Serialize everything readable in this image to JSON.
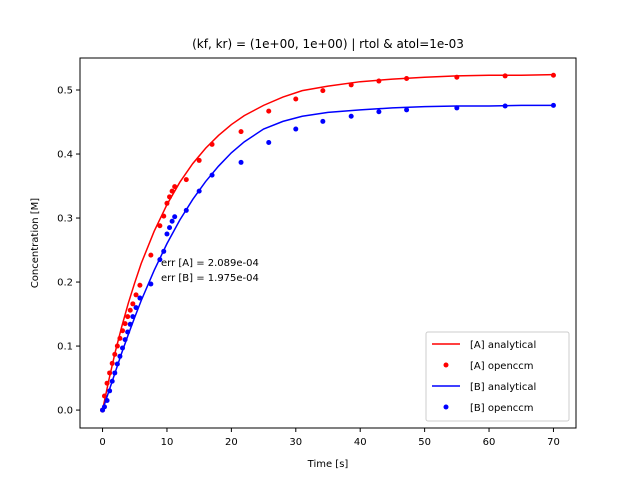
{
  "chart_data": {
    "type": "line",
    "title": "(kf, kr) = (1e+00, 1e+00) | rtol & atol=1e-03",
    "xlabel": "Time [s]",
    "ylabel": "Concentration [M]",
    "xlim": [
      -3.5,
      73.5
    ],
    "ylim": [
      -0.028,
      0.55
    ],
    "xticks": [
      0,
      10,
      20,
      30,
      40,
      50,
      60,
      70
    ],
    "yticks": [
      0.0,
      0.1,
      0.2,
      0.3,
      0.4,
      0.5
    ],
    "xtick_labels": [
      "0",
      "10",
      "20",
      "30",
      "40",
      "50",
      "60",
      "70"
    ],
    "ytick_labels": [
      "0.0",
      "0.1",
      "0.2",
      "0.3",
      "0.4",
      "0.5"
    ],
    "legend_position": "lower-right",
    "annotations": [
      "err [A] = 2.089e-04",
      "err [B] = 1.975e-04"
    ],
    "series": [
      {
        "name": "[A] analytical",
        "kind": "line",
        "color": "#ff0000",
        "x": [
          0,
          1,
          2,
          3,
          4,
          5,
          6,
          8,
          10,
          12,
          14,
          16,
          18,
          20,
          22,
          25,
          28,
          31,
          35,
          40,
          45,
          50,
          55,
          60,
          65,
          70
        ],
        "y": [
          0.0,
          0.048,
          0.092,
          0.131,
          0.167,
          0.199,
          0.229,
          0.279,
          0.321,
          0.356,
          0.385,
          0.409,
          0.429,
          0.446,
          0.46,
          0.476,
          0.489,
          0.499,
          0.506,
          0.513,
          0.517,
          0.52,
          0.522,
          0.523,
          0.523,
          0.524
        ]
      },
      {
        "name": "[A] openccm",
        "kind": "scatter",
        "color": "#ff0000",
        "x": [
          0,
          0.3,
          0.7,
          1.1,
          1.5,
          1.9,
          2.3,
          2.7,
          3.1,
          3.5,
          3.9,
          4.3,
          4.7,
          5.2,
          5.8,
          7.5,
          8.9,
          9.5,
          10.0,
          10.4,
          10.8,
          11.2,
          13.0,
          15.0,
          17.0,
          21.5,
          25.8,
          30.0,
          34.2,
          38.6,
          42.9,
          47.2,
          55.0,
          62.5,
          70.0
        ],
        "y": [
          0.0,
          0.022,
          0.042,
          0.058,
          0.073,
          0.087,
          0.1,
          0.112,
          0.124,
          0.135,
          0.146,
          0.156,
          0.166,
          0.18,
          0.195,
          0.242,
          0.288,
          0.303,
          0.323,
          0.333,
          0.342,
          0.349,
          0.36,
          0.39,
          0.415,
          0.435,
          0.467,
          0.486,
          0.499,
          0.508,
          0.514,
          0.518,
          0.52,
          0.522,
          0.523
        ]
      },
      {
        "name": "[B] analytical",
        "kind": "line",
        "color": "#0000ff",
        "x": [
          0,
          1,
          2,
          3,
          4,
          5,
          6,
          8,
          10,
          12,
          14,
          16,
          18,
          20,
          22,
          25,
          28,
          31,
          35,
          40,
          45,
          50,
          55,
          60,
          65,
          70
        ],
        "y": [
          0.0,
          0.03,
          0.06,
          0.09,
          0.118,
          0.145,
          0.171,
          0.218,
          0.26,
          0.297,
          0.329,
          0.357,
          0.381,
          0.402,
          0.419,
          0.439,
          0.451,
          0.459,
          0.465,
          0.469,
          0.472,
          0.474,
          0.475,
          0.475,
          0.476,
          0.476
        ]
      },
      {
        "name": "[B] openccm",
        "kind": "scatter",
        "color": "#0000ff",
        "x": [
          0,
          0.3,
          0.7,
          1.1,
          1.5,
          1.9,
          2.3,
          2.7,
          3.1,
          3.5,
          3.9,
          4.3,
          4.7,
          5.2,
          5.8,
          7.5,
          8.9,
          9.5,
          10.0,
          10.4,
          10.8,
          11.2,
          13.0,
          15.0,
          17.0,
          21.5,
          25.8,
          30.0,
          34.2,
          38.6,
          42.9,
          47.2,
          55.0,
          62.5,
          70.0
        ],
        "y": [
          0.0,
          0.005,
          0.015,
          0.03,
          0.045,
          0.058,
          0.072,
          0.084,
          0.097,
          0.11,
          0.122,
          0.134,
          0.146,
          0.16,
          0.175,
          0.197,
          0.235,
          0.248,
          0.275,
          0.285,
          0.295,
          0.302,
          0.312,
          0.342,
          0.367,
          0.387,
          0.418,
          0.439,
          0.451,
          0.459,
          0.466,
          0.469,
          0.472,
          0.475,
          0.476
        ]
      }
    ]
  }
}
